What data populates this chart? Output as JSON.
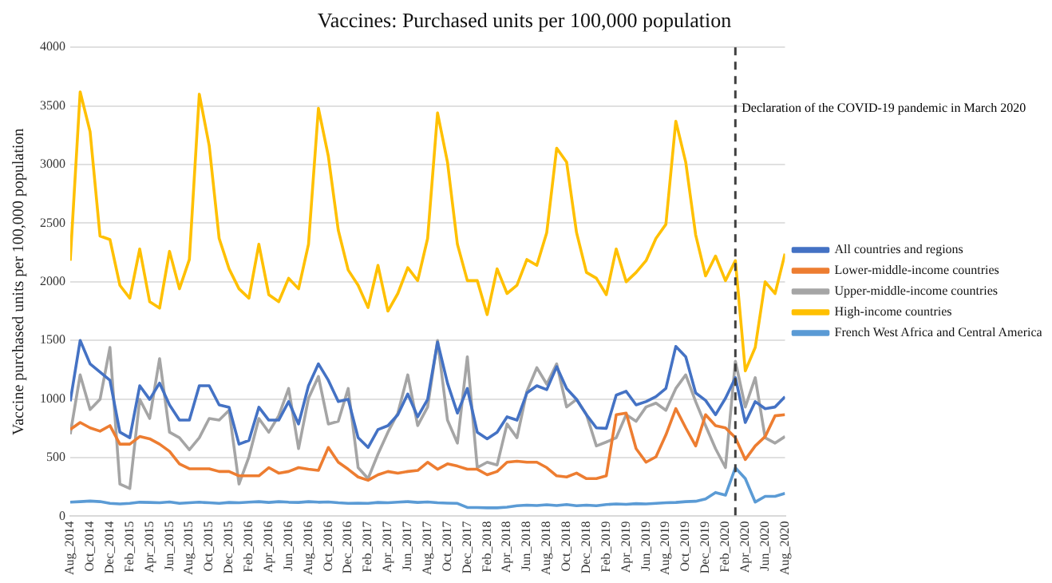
{
  "chart_data": {
    "type": "line",
    "title": "Vaccines: Purchased units per 100,000 population",
    "ylabel": "Vaccine purchased units per 100,000 population",
    "x": [
      "2014-08",
      "2014-09",
      "2014-10",
      "2014-11",
      "2014-12",
      "2015-01",
      "2015-02",
      "2015-03",
      "2015-04",
      "2015-05",
      "2015-06",
      "2015-07",
      "2015-08",
      "2015-09",
      "2015-10",
      "2015-11",
      "2015-12",
      "2016-01",
      "2016-02",
      "2016-03",
      "2016-04",
      "2016-05",
      "2016-06",
      "2016-07",
      "2016-08",
      "2016-09",
      "2016-10",
      "2016-11",
      "2016-12",
      "2017-01",
      "2017-02",
      "2017-03",
      "2017-04",
      "2017-05",
      "2017-06",
      "2017-07",
      "2017-08",
      "2017-09",
      "2017-10",
      "2017-11",
      "2017-12",
      "2018-01",
      "2018-02",
      "2018-03",
      "2018-04",
      "2018-05",
      "2018-06",
      "2018-07",
      "2018-08",
      "2018-09",
      "2018-10",
      "2018-11",
      "2018-12",
      "2019-01",
      "2019-02",
      "2019-03",
      "2019-04",
      "2019-05",
      "2019-06",
      "2019-07",
      "2019-08",
      "2019-09",
      "2019-10",
      "2019-11",
      "2019-12",
      "2020-01",
      "2020-02",
      "2020-03",
      "2020-04",
      "2020-05",
      "2020-06",
      "2020-07",
      "2020-08"
    ],
    "xlim": [
      "2014-08",
      "2020-08"
    ],
    "xticks": [
      {
        "value": "2014-08",
        "label": "Aug_2014"
      },
      {
        "value": "2014-10",
        "label": "Oct_2014"
      },
      {
        "value": "2014-12",
        "label": "Dec_2014"
      },
      {
        "value": "2015-02",
        "label": "Feb_2015"
      },
      {
        "value": "2015-04",
        "label": "Apr_2015"
      },
      {
        "value": "2015-06",
        "label": "Jun_2015"
      },
      {
        "value": "2015-08",
        "label": "Aug_2015"
      },
      {
        "value": "2015-10",
        "label": "Oct_2015"
      },
      {
        "value": "2015-12",
        "label": "Dec_2015"
      },
      {
        "value": "2016-02",
        "label": "Feb_2016"
      },
      {
        "value": "2016-04",
        "label": "Apr_2016"
      },
      {
        "value": "2016-06",
        "label": "Jun_2016"
      },
      {
        "value": "2016-08",
        "label": "Aug_2016"
      },
      {
        "value": "2016-10",
        "label": "Oct_2016"
      },
      {
        "value": "2016-12",
        "label": "Dec_2016"
      },
      {
        "value": "2017-02",
        "label": "Feb_2017"
      },
      {
        "value": "2017-04",
        "label": "Apr_2017"
      },
      {
        "value": "2017-06",
        "label": "Jun_2017"
      },
      {
        "value": "2017-08",
        "label": "Aug_2017"
      },
      {
        "value": "2017-10",
        "label": "Oct_2017"
      },
      {
        "value": "2017-12",
        "label": "Dec_2017"
      },
      {
        "value": "2018-02",
        "label": "Feb_2018"
      },
      {
        "value": "2018-04",
        "label": "Apr_2018"
      },
      {
        "value": "2018-06",
        "label": "Jun_2018"
      },
      {
        "value": "2018-08",
        "label": "Aug_2018"
      },
      {
        "value": "2018-10",
        "label": "Oct_2018"
      },
      {
        "value": "2018-12",
        "label": "Dec_2018"
      },
      {
        "value": "2019-02",
        "label": "Feb_2019"
      },
      {
        "value": "2019-04",
        "label": "Apr_2019"
      },
      {
        "value": "2019-06",
        "label": "Jun_2019"
      },
      {
        "value": "2019-08",
        "label": "Aug_2019"
      },
      {
        "value": "2019-10",
        "label": "Oct_2019"
      },
      {
        "value": "2019-12",
        "label": "Dec_2019"
      },
      {
        "value": "2020-02",
        "label": "Feb_2020"
      },
      {
        "value": "2020-04",
        "label": "Apr_2020"
      },
      {
        "value": "2020-06",
        "label": "Jun_2020"
      },
      {
        "value": "2020-08",
        "label": "Aug_2020"
      }
    ],
    "ylim": [
      0,
      4000
    ],
    "yticks": [
      0,
      500,
      1000,
      1500,
      2000,
      2500,
      3000,
      3500,
      4000
    ],
    "grid": "y",
    "legend": "right",
    "marker": "none",
    "series": [
      {
        "name": "All countries and regions",
        "color": "#4472c4",
        "values": [
          980,
          1500,
          1300,
          1230,
          1160,
          717,
          670,
          1113,
          997,
          1136,
          950,
          820,
          820,
          1113,
          1113,
          950,
          930,
          615,
          647,
          930,
          820,
          820,
          978,
          787,
          1113,
          1300,
          1160,
          978,
          997,
          670,
          587,
          740,
          773,
          866,
          1043,
          848,
          997,
          1486,
          1136,
          880,
          1090,
          717,
          661,
          717,
          848,
          820,
          1052,
          1113,
          1080,
          1276,
          1090,
          997,
          866,
          754,
          750,
          1033,
          1066,
          950,
          978,
          1020,
          1090,
          1448,
          1360,
          1052,
          988,
          866,
          1006,
          1182,
          800,
          978,
          918,
          932,
          1020
        ]
      },
      {
        "name": "Lower-middle-income countries",
        "color": "#ed7d31",
        "values": [
          740,
          800,
          754,
          726,
          773,
          615,
          615,
          680,
          661,
          615,
          554,
          447,
          405,
          405,
          405,
          382,
          382,
          345,
          345,
          345,
          415,
          368,
          382,
          415,
          401,
          391,
          587,
          461,
          401,
          335,
          307,
          354,
          382,
          368,
          382,
          391,
          461,
          401,
          447,
          428,
          401,
          401,
          354,
          382,
          461,
          470,
          461,
          461,
          415,
          345,
          335,
          368,
          321,
          321,
          345,
          866,
          880,
          577,
          461,
          507,
          694,
          918,
          754,
          600,
          866,
          773,
          754,
          670,
          484,
          600,
          680,
          857,
          866
        ]
      },
      {
        "name": "Upper-middle-income countries",
        "color": "#a5a5a5",
        "values": [
          700,
          1206,
          910,
          997,
          1440,
          275,
          237,
          997,
          834,
          1345,
          717,
          670,
          568,
          670,
          834,
          820,
          904,
          275,
          507,
          834,
          717,
          857,
          1090,
          577,
          1006,
          1192,
          787,
          810,
          1090,
          415,
          321,
          531,
          717,
          880,
          1206,
          773,
          932,
          1500,
          820,
          624,
          1360,
          415,
          461,
          438,
          787,
          670,
          1066,
          1267,
          1127,
          1300,
          932,
          997,
          866,
          600,
          633,
          670,
          866,
          810,
          932,
          965,
          904,
          1090,
          1206,
          978,
          773,
          577,
          415,
          1322,
          932,
          1182,
          670,
          624,
          680
        ]
      },
      {
        "name": "High-income countries",
        "color": "#ffc000",
        "values": [
          2180,
          3620,
          3280,
          2390,
          2360,
          1970,
          1860,
          2280,
          1830,
          1775,
          2260,
          1940,
          2190,
          3600,
          3160,
          2370,
          2110,
          1940,
          1860,
          2320,
          1890,
          1830,
          2030,
          1940,
          2320,
          3480,
          3070,
          2440,
          2100,
          1970,
          1780,
          2140,
          1750,
          1900,
          2120,
          2010,
          2370,
          3440,
          3020,
          2320,
          2010,
          2010,
          1720,
          2110,
          1900,
          1970,
          2190,
          2140,
          2420,
          3140,
          3020,
          2420,
          2080,
          2030,
          1890,
          2280,
          2000,
          2080,
          2180,
          2370,
          2490,
          3370,
          3020,
          2400,
          2050,
          2220,
          2010,
          2180,
          1240,
          1440,
          2000,
          1900,
          2240
        ]
      },
      {
        "name": "French West Africa and Central America",
        "color": "#5b9bd5",
        "values": [
          120,
          125,
          130,
          125,
          110,
          105,
          110,
          120,
          118,
          115,
          122,
          110,
          115,
          120,
          115,
          110,
          118,
          115,
          120,
          125,
          118,
          125,
          120,
          118,
          125,
          120,
          122,
          115,
          110,
          112,
          110,
          118,
          115,
          120,
          125,
          118,
          122,
          115,
          112,
          110,
          75,
          75,
          72,
          72,
          78,
          90,
          95,
          92,
          98,
          92,
          100,
          90,
          95,
          90,
          100,
          105,
          102,
          108,
          105,
          110,
          115,
          118,
          125,
          128,
          148,
          203,
          180,
          414,
          321,
          121,
          170,
          170,
          195
        ]
      }
    ],
    "ref_lines": [
      {
        "axis": "x",
        "value": "2020-03",
        "label": "Declaration of the COVID-19 pandemic in March 2020",
        "color": "#404040",
        "line_style": "dashed"
      }
    ]
  }
}
